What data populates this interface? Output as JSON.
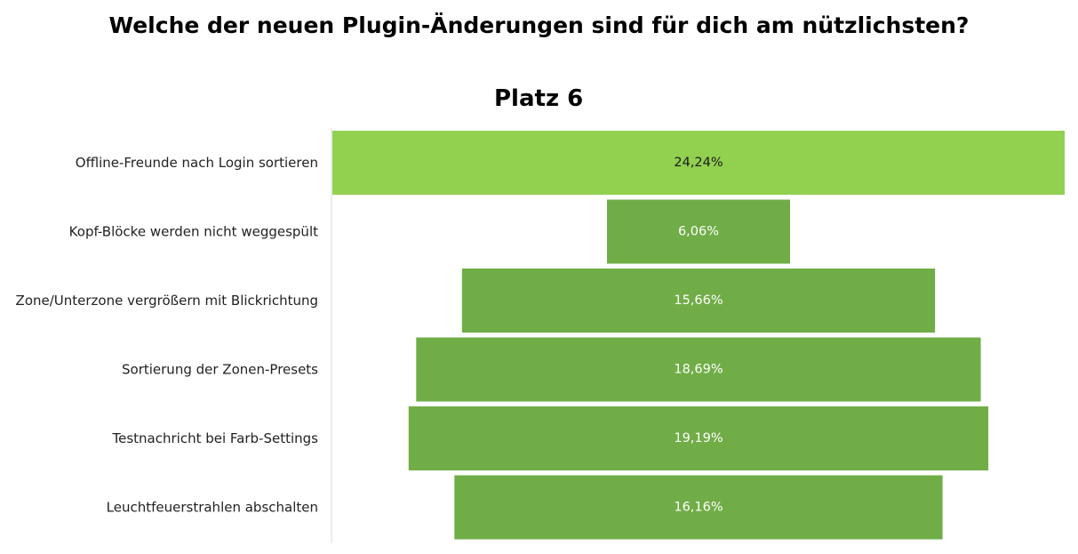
{
  "chart_data": {
    "type": "bar",
    "title": "Welche der neuen Plugin-Änderungen sind für dich am nützlichsten?",
    "subtitle": "Platz 6",
    "categories": [
      "Offline-Freunde nach Login sortieren",
      "Kopf-Blöcke werden nicht weggespült",
      "Zone/Unterzone vergrößern mit Blickrichtung",
      "Sortierung der Zonen-Presets",
      "Testnachricht bei Farb-Settings",
      "Leuchtfeuerstrahlen abschalten"
    ],
    "values": [
      24.24,
      6.06,
      15.66,
      18.69,
      19.19,
      16.16
    ],
    "value_labels": [
      "24,24%",
      "6,06%",
      "15,66%",
      "18,69%",
      "19,19%",
      "16,16%"
    ],
    "highlight_index": 0,
    "colors": {
      "highlight": "#92d050",
      "default": "#70ad47",
      "axis": "#d9d9d9",
      "highlight_label": "#1a1a1a",
      "default_label": "#ffffff"
    },
    "layout_style": "funnel-centered",
    "grid": false,
    "legend": "none"
  }
}
